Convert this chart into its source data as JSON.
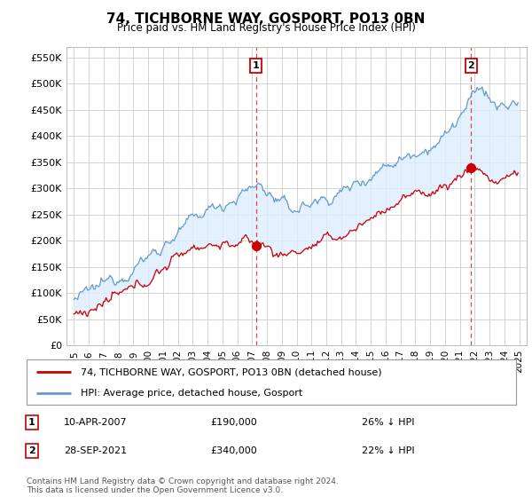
{
  "title": "74, TICHBORNE WAY, GOSPORT, PO13 0BN",
  "subtitle": "Price paid vs. HM Land Registry's House Price Index (HPI)",
  "ylabel_ticks": [
    0,
    50000,
    100000,
    150000,
    200000,
    250000,
    300000,
    350000,
    400000,
    450000,
    500000,
    550000
  ],
  "ylabel_labels": [
    "£0",
    "£50K",
    "£100K",
    "£150K",
    "£200K",
    "£250K",
    "£300K",
    "£350K",
    "£400K",
    "£450K",
    "£500K",
    "£550K"
  ],
  "ylim": [
    0,
    570000
  ],
  "xlim_start": 1994.5,
  "xlim_end": 2025.5,
  "line_color_property": "#cc0000",
  "line_color_hpi": "#6699cc",
  "fill_color": "#ddeeff",
  "background_color": "#ffffff",
  "grid_color": "#cccccc",
  "dashed_line_color": "#dd4444",
  "purchase1_year": 2007.27,
  "purchase1_price": 190000,
  "purchase1_label": "1",
  "purchase2_year": 2021.75,
  "purchase2_price": 340000,
  "purchase2_label": "2",
  "legend_line1": "74, TICHBORNE WAY, GOSPORT, PO13 0BN (detached house)",
  "legend_line2": "HPI: Average price, detached house, Gosport",
  "footnote": "Contains HM Land Registry data © Crown copyright and database right 2024.\nThis data is licensed under the Open Government Licence v3.0.",
  "table_row1_num": "1",
  "table_row1_date": "10-APR-2007",
  "table_row1_price": "£190,000",
  "table_row1_pct": "26% ↓ HPI",
  "table_row2_num": "2",
  "table_row2_date": "28-SEP-2021",
  "table_row2_price": "£340,000",
  "table_row2_pct": "22% ↓ HPI"
}
